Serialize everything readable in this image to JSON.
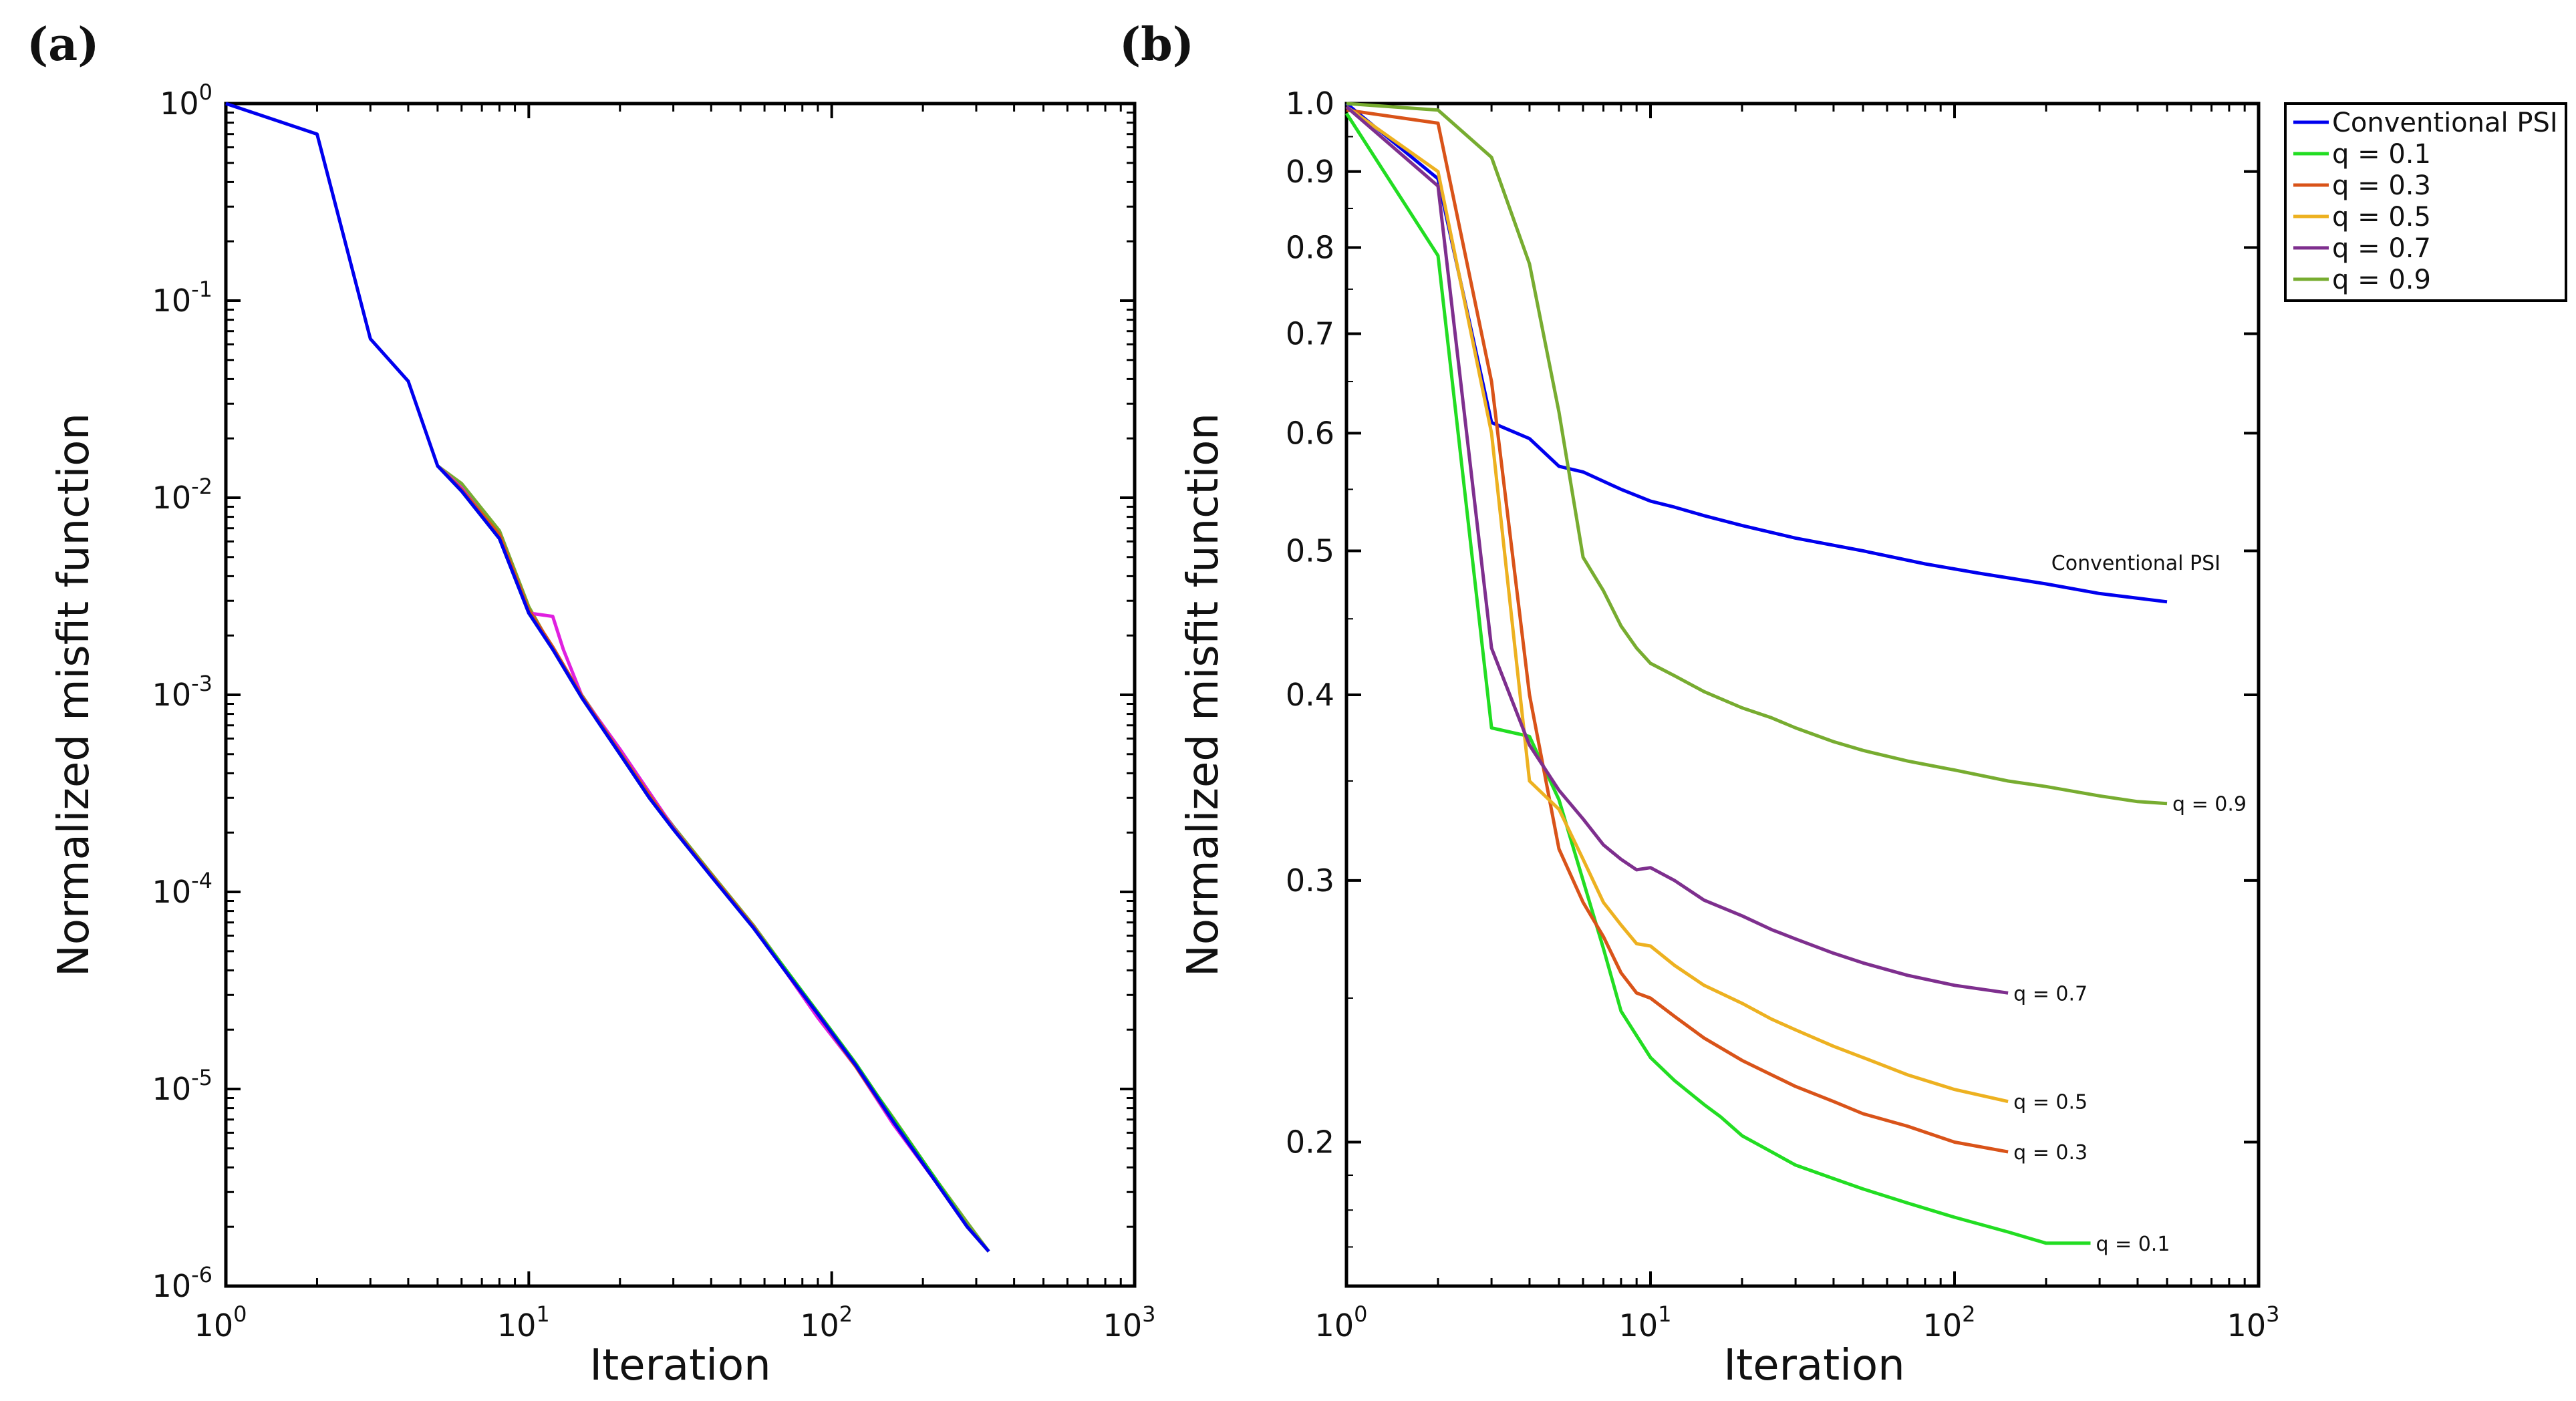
{
  "chart_data": [
    {
      "panel": "(a)",
      "type": "line",
      "xscale": "log",
      "yscale": "log",
      "xlim": [
        1,
        1000
      ],
      "ylim": [
        1e-06,
        1
      ],
      "xlabel": "Iteration",
      "ylabel": "Normalized misfit function",
      "x_ticks": [
        {
          "value": 1,
          "base": "10",
          "exp": "0"
        },
        {
          "value": 10,
          "base": "10",
          "exp": "1"
        },
        {
          "value": 100,
          "base": "10",
          "exp": "2"
        },
        {
          "value": 1000,
          "base": "10",
          "exp": "3"
        }
      ],
      "y_ticks": [
        {
          "value": 1,
          "base": "10",
          "exp": "0"
        },
        {
          "value": 0.1,
          "base": "10",
          "exp": "-1"
        },
        {
          "value": 0.01,
          "base": "10",
          "exp": "-2"
        },
        {
          "value": 0.001,
          "base": "10",
          "exp": "-3"
        },
        {
          "value": 0.0001,
          "base": "10",
          "exp": "-4"
        },
        {
          "value": 1e-05,
          "base": "10",
          "exp": "-5"
        },
        {
          "value": 1e-06,
          "base": "10",
          "exp": "-6"
        }
      ],
      "series": [
        {
          "name": "q = 0.9",
          "color": "#77ac30",
          "x": [
            5,
            6,
            8,
            10,
            12,
            15,
            20,
            25,
            30,
            40,
            55,
            70,
            90,
            120,
            160,
            220,
            280,
            330
          ],
          "y": [
            0.0145,
            0.0118,
            0.0068,
            0.0028,
            0.0017,
            0.00099,
            0.00052,
            0.00031,
            0.000215,
            0.000124,
            6.8e-05,
            4.1e-05,
            2.4e-05,
            1.32e-05,
            7.1e-06,
            3.5e-06,
            2.1e-06,
            1.5e-06
          ]
        },
        {
          "name": "q = 0.7",
          "color": "#e020e0",
          "x": [
            5,
            6,
            8,
            10,
            12,
            13,
            15,
            20,
            25,
            30,
            40,
            55,
            70,
            90,
            120,
            160,
            220,
            280,
            330
          ],
          "y": [
            0.0145,
            0.0112,
            0.0064,
            0.0026,
            0.0025,
            0.0017,
            0.00098,
            0.00053,
            0.00032,
            0.000212,
            0.00012,
            6.7e-05,
            4e-05,
            2.3e-05,
            1.3e-05,
            6.6e-06,
            3.4e-06,
            2e-06,
            1.5e-06
          ]
        },
        {
          "name": "q = 0.3",
          "color": "#d95319",
          "x": [
            5,
            6,
            8,
            10,
            12,
            15,
            20,
            25,
            30,
            40,
            55,
            70,
            90,
            120,
            160,
            220,
            280,
            330
          ],
          "y": [
            0.0145,
            0.011,
            0.0065,
            0.0027,
            0.00175,
            0.00098,
            0.00051,
            0.00031,
            0.00021,
            0.000122,
            6.7e-05,
            4e-05,
            2.4e-05,
            1.3e-05,
            6.8e-06,
            3.4e-06,
            2e-06,
            1.5e-06
          ]
        },
        {
          "name": "q = 0.1",
          "color": "#22cc22",
          "x": [
            5,
            6,
            8,
            10,
            12,
            15,
            20,
            25,
            30,
            40,
            55,
            70,
            90,
            120,
            160,
            220,
            280,
            330
          ],
          "y": [
            0.0145,
            0.0108,
            0.0062,
            0.0026,
            0.0017,
            0.00096,
            0.0005,
            0.0003,
            0.000208,
            0.00012,
            6.6e-05,
            4.1e-05,
            2.45e-05,
            1.35e-05,
            7e-06,
            3.5e-06,
            2e-06,
            1.5e-06
          ]
        },
        {
          "name": "Conventional PSI",
          "color": "#0000ee",
          "x": [
            1,
            2,
            3,
            4,
            5,
            6,
            8,
            10,
            12,
            15,
            20,
            25,
            30,
            40,
            55,
            70,
            90,
            120,
            160,
            220,
            280,
            330
          ],
          "y": [
            1.0,
            0.7,
            0.064,
            0.039,
            0.0145,
            0.0108,
            0.0062,
            0.0026,
            0.0017,
            0.00096,
            0.0005,
            0.0003,
            0.000208,
            0.00012,
            6.6e-05,
            4e-05,
            2.4e-05,
            1.32e-05,
            6.8e-06,
            3.4e-06,
            2e-06,
            1.5e-06
          ]
        }
      ]
    },
    {
      "panel": "(b)",
      "type": "line",
      "xscale": "log",
      "yscale": "log",
      "xlim": [
        1,
        1000
      ],
      "ylim": [
        0.16,
        1.0
      ],
      "xlabel": "Iteration",
      "ylabel": "Normalized misfit function",
      "x_ticks": [
        {
          "value": 1,
          "base": "10",
          "exp": "0"
        },
        {
          "value": 10,
          "base": "10",
          "exp": "1"
        },
        {
          "value": 100,
          "base": "10",
          "exp": "2"
        },
        {
          "value": 1000,
          "base": "10",
          "exp": "3"
        }
      ],
      "y_ticks": [
        {
          "value": 1.0,
          "label": "1.0"
        },
        {
          "value": 0.9,
          "label": "0.9"
        },
        {
          "value": 0.8,
          "label": "0.8"
        },
        {
          "value": 0.7,
          "label": "0.7"
        },
        {
          "value": 0.6,
          "label": "0.6"
        },
        {
          "value": 0.5,
          "label": "0.5"
        },
        {
          "value": 0.4,
          "label": "0.4"
        },
        {
          "value": 0.3,
          "label": "0.3"
        },
        {
          "value": 0.2,
          "label": "0.2"
        }
      ],
      "legend_position": "outside-top-right",
      "series": [
        {
          "name": "Conventional PSI",
          "end_label": "Conventional PSI",
          "color": "#0000ee",
          "x": [
            1,
            2,
            3,
            4,
            5,
            6,
            8,
            10,
            12,
            15,
            20,
            30,
            50,
            80,
            120,
            200,
            300,
            500
          ],
          "y": [
            1.0,
            0.89,
            0.61,
            0.595,
            0.57,
            0.565,
            0.55,
            0.54,
            0.535,
            0.528,
            0.52,
            0.51,
            0.5,
            0.49,
            0.483,
            0.475,
            0.468,
            0.462
          ]
        },
        {
          "name": "q = 0.1",
          "end_label": "q = 0.1",
          "color": "#22dd22",
          "x": [
            1,
            2,
            3,
            4,
            5,
            6,
            7,
            8,
            10,
            12,
            15,
            17,
            20,
            25,
            30,
            40,
            50,
            70,
            100,
            150,
            200,
            280
          ],
          "y": [
            0.985,
            0.79,
            0.38,
            0.375,
            0.34,
            0.3,
            0.27,
            0.245,
            0.228,
            0.22,
            0.212,
            0.208,
            0.202,
            0.197,
            0.193,
            0.189,
            0.186,
            0.182,
            0.178,
            0.174,
            0.171,
            0.171
          ]
        },
        {
          "name": "q = 0.3",
          "end_label": "q = 0.3",
          "color": "#d95319",
          "x": [
            1,
            2,
            3,
            4,
            5,
            6,
            7,
            8,
            9,
            10,
            12,
            15,
            20,
            25,
            30,
            40,
            50,
            70,
            100,
            150
          ],
          "y": [
            0.99,
            0.97,
            0.65,
            0.4,
            0.315,
            0.29,
            0.275,
            0.26,
            0.252,
            0.25,
            0.243,
            0.235,
            0.227,
            0.222,
            0.218,
            0.213,
            0.209,
            0.205,
            0.2,
            0.197
          ]
        },
        {
          "name": "q = 0.5",
          "end_label": "q = 0.5",
          "color": "#edb120",
          "x": [
            1,
            2,
            3,
            4,
            5,
            6,
            7,
            8,
            9,
            10,
            12,
            15,
            20,
            25,
            30,
            40,
            50,
            70,
            100,
            150
          ],
          "y": [
            0.995,
            0.9,
            0.6,
            0.35,
            0.335,
            0.31,
            0.29,
            0.28,
            0.272,
            0.271,
            0.263,
            0.255,
            0.248,
            0.242,
            0.238,
            0.232,
            0.228,
            0.222,
            0.217,
            0.213
          ]
        },
        {
          "name": "q = 0.7",
          "end_label": "q = 0.7",
          "color": "#7e2f8e",
          "x": [
            1,
            2,
            3,
            4,
            5,
            6,
            7,
            8,
            9,
            10,
            12,
            15,
            20,
            25,
            30,
            40,
            50,
            70,
            100,
            150
          ],
          "y": [
            0.995,
            0.88,
            0.43,
            0.37,
            0.345,
            0.33,
            0.317,
            0.31,
            0.305,
            0.306,
            0.3,
            0.291,
            0.284,
            0.278,
            0.274,
            0.268,
            0.264,
            0.259,
            0.255,
            0.252
          ]
        },
        {
          "name": "q = 0.9",
          "end_label": "q = 0.9",
          "color": "#77ac30",
          "x": [
            1,
            2,
            3,
            4,
            5,
            6,
            7,
            8,
            9,
            10,
            12,
            15,
            20,
            25,
            30,
            40,
            50,
            70,
            100,
            150,
            200,
            300,
            400,
            500
          ],
          "y": [
            1.0,
            0.99,
            0.92,
            0.78,
            0.62,
            0.495,
            0.47,
            0.445,
            0.43,
            0.42,
            0.412,
            0.402,
            0.392,
            0.386,
            0.38,
            0.372,
            0.367,
            0.361,
            0.356,
            0.35,
            0.347,
            0.342,
            0.339,
            0.338
          ]
        }
      ]
    }
  ]
}
